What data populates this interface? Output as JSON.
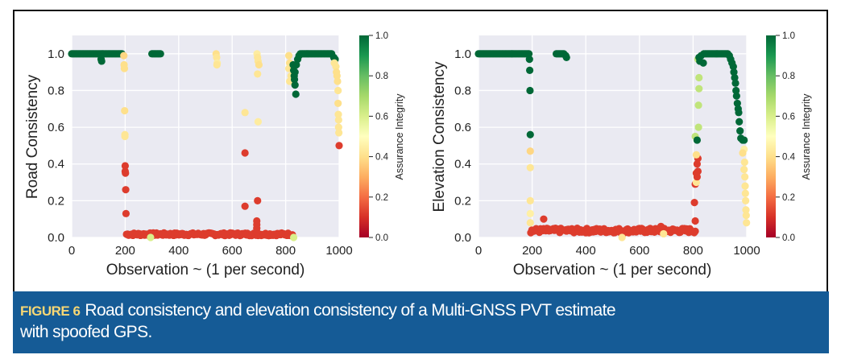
{
  "figure": {
    "label": "FIGURE 6",
    "caption_line1": "Road consistency and elevation consistency of a Multi-GNSS PVT estimate",
    "caption_line2": "with spoofed GPS."
  },
  "colors": {
    "caption_bg": "#155b96",
    "figure_label": "#f7d774",
    "plot_bg": "#eaeaf2",
    "grid": "#ffffff",
    "colormap": [
      "#a50026",
      "#d73027",
      "#f46d43",
      "#fdae61",
      "#fee08b",
      "#ffffbf",
      "#d9ef8b",
      "#a6d96a",
      "#66bd63",
      "#1a9850",
      "#006837"
    ]
  },
  "chart_data": [
    {
      "type": "scatter",
      "id": "road",
      "title": "",
      "xlabel": "Observation ~ (1 per second)",
      "ylabel": "Road Consistency",
      "xlim": [
        0,
        1000
      ],
      "ylim": [
        0,
        1.1
      ],
      "xticks": [
        0,
        200,
        400,
        600,
        800,
        1000
      ],
      "xtick_labels": [
        "0",
        "200",
        "400",
        "600",
        "800",
        "1000"
      ],
      "yticks": [
        0,
        0.2,
        0.4,
        0.6,
        0.8,
        1.0
      ],
      "ytick_labels": [
        "0.0",
        "0.2",
        "0.4",
        "0.6",
        "0.8",
        "1.0"
      ],
      "grid": true,
      "colorbar": {
        "label": "Assurance Integrity",
        "range": [
          0,
          1
        ],
        "ticks": [
          0,
          0.2,
          0.4,
          0.6,
          0.8,
          1.0
        ],
        "tick_labels": [
          "0.0",
          "0.2",
          "0.4",
          "0.6",
          "0.8",
          "1.0"
        ],
        "colormap": "RdYlGn"
      },
      "segments": [
        {
          "x_range": [
            0,
            190
          ],
          "y": 1.0,
          "c": 1.0,
          "step": 4
        },
        {
          "x_range": [
            300,
            335
          ],
          "y": 1.0,
          "c": 1.0,
          "step": 4
        },
        {
          "x_range": [
            205,
            295
          ],
          "y": 0.01,
          "c": 0.12,
          "step": 4,
          "jitter": 0.015
        },
        {
          "x_range": [
            305,
            825
          ],
          "y": 0.01,
          "c": 0.12,
          "step": 4,
          "jitter": 0.015
        },
        {
          "x_range": [
            860,
            975
          ],
          "y": 1.0,
          "c": 1.0,
          "step": 4
        }
      ],
      "points": [
        {
          "x": 110,
          "y": 0.97,
          "c": 1.0
        },
        {
          "x": 112,
          "y": 0.96,
          "c": 1.0
        },
        {
          "x": 195,
          "y": 0.99,
          "c": 0.38
        },
        {
          "x": 196,
          "y": 0.94,
          "c": 0.4
        },
        {
          "x": 197,
          "y": 0.92,
          "c": 0.4
        },
        {
          "x": 198,
          "y": 0.69,
          "c": 0.4
        },
        {
          "x": 199,
          "y": 0.56,
          "c": 0.42
        },
        {
          "x": 199,
          "y": 0.55,
          "c": 0.42
        },
        {
          "x": 200,
          "y": 0.39,
          "c": 0.12
        },
        {
          "x": 200,
          "y": 0.36,
          "c": 0.12
        },
        {
          "x": 201,
          "y": 0.35,
          "c": 0.12
        },
        {
          "x": 202,
          "y": 0.26,
          "c": 0.12
        },
        {
          "x": 203,
          "y": 0.13,
          "c": 0.12
        },
        {
          "x": 295,
          "y": 0.0,
          "c": 0.6
        },
        {
          "x": 540,
          "y": 1.0,
          "c": 0.4
        },
        {
          "x": 542,
          "y": 0.98,
          "c": 0.42
        },
        {
          "x": 544,
          "y": 0.95,
          "c": 0.44
        },
        {
          "x": 543,
          "y": 0.94,
          "c": 0.42
        },
        {
          "x": 648,
          "y": 0.68,
          "c": 0.42
        },
        {
          "x": 648,
          "y": 0.46,
          "c": 0.12
        },
        {
          "x": 648,
          "y": 0.17,
          "c": 0.12
        },
        {
          "x": 693,
          "y": 1.0,
          "c": 0.44
        },
        {
          "x": 695,
          "y": 0.98,
          "c": 0.42
        },
        {
          "x": 697,
          "y": 0.96,
          "c": 0.42
        },
        {
          "x": 700,
          "y": 0.94,
          "c": 0.4
        },
        {
          "x": 695,
          "y": 0.89,
          "c": 0.42
        },
        {
          "x": 697,
          "y": 0.63,
          "c": 0.44
        },
        {
          "x": 695,
          "y": 0.2,
          "c": 0.12
        },
        {
          "x": 692,
          "y": 0.09,
          "c": 0.12
        },
        {
          "x": 692,
          "y": 0.07,
          "c": 0.12
        },
        {
          "x": 692,
          "y": 0.05,
          "c": 0.12
        },
        {
          "x": 692,
          "y": 0.03,
          "c": 0.12
        },
        {
          "x": 812,
          "y": 0.99,
          "c": 0.4
        },
        {
          "x": 815,
          "y": 0.95,
          "c": 0.4
        },
        {
          "x": 812,
          "y": 0.92,
          "c": 0.42
        },
        {
          "x": 815,
          "y": 0.85,
          "c": 0.42
        },
        {
          "x": 825,
          "y": 0.92,
          "c": 0.4
        },
        {
          "x": 820,
          "y": 0.88,
          "c": 0.42
        },
        {
          "x": 830,
          "y": 0.0,
          "c": 0.6
        },
        {
          "x": 828,
          "y": 0.94,
          "c": 1.0
        },
        {
          "x": 830,
          "y": 0.91,
          "c": 1.0
        },
        {
          "x": 832,
          "y": 0.88,
          "c": 1.0
        },
        {
          "x": 833,
          "y": 0.86,
          "c": 1.0
        },
        {
          "x": 835,
          "y": 0.83,
          "c": 1.0
        },
        {
          "x": 838,
          "y": 0.78,
          "c": 1.0
        },
        {
          "x": 835,
          "y": 0.9,
          "c": 1.0
        },
        {
          "x": 840,
          "y": 0.94,
          "c": 1.0
        },
        {
          "x": 845,
          "y": 0.97,
          "c": 1.0
        },
        {
          "x": 850,
          "y": 0.99,
          "c": 1.0
        },
        {
          "x": 855,
          "y": 1.0,
          "c": 1.0
        },
        {
          "x": 980,
          "y": 0.98,
          "c": 1.0
        },
        {
          "x": 985,
          "y": 0.97,
          "c": 1.0
        },
        {
          "x": 982,
          "y": 0.95,
          "c": 0.42
        },
        {
          "x": 988,
          "y": 0.93,
          "c": 0.42
        },
        {
          "x": 990,
          "y": 0.9,
          "c": 0.4
        },
        {
          "x": 992,
          "y": 0.88,
          "c": 0.4
        },
        {
          "x": 994,
          "y": 0.85,
          "c": 0.4
        },
        {
          "x": 996,
          "y": 0.8,
          "c": 0.42
        },
        {
          "x": 996,
          "y": 0.73,
          "c": 0.4
        },
        {
          "x": 997,
          "y": 0.67,
          "c": 0.42
        },
        {
          "x": 998,
          "y": 0.64,
          "c": 0.42
        },
        {
          "x": 998,
          "y": 0.6,
          "c": 0.42
        },
        {
          "x": 999,
          "y": 0.57,
          "c": 0.42
        },
        {
          "x": 1000,
          "y": 0.5,
          "c": 0.12
        }
      ]
    },
    {
      "type": "scatter",
      "id": "elevation",
      "title": "",
      "xlabel": "Observation ~ (1 per second)",
      "ylabel": "Elevation Consistency",
      "xlim": [
        0,
        1000
      ],
      "ylim": [
        0,
        1.1
      ],
      "xticks": [
        0,
        200,
        400,
        600,
        800,
        1000
      ],
      "xtick_labels": [
        "0",
        "200",
        "400",
        "600",
        "800",
        "1000"
      ],
      "yticks": [
        0,
        0.2,
        0.4,
        0.6,
        0.8,
        1.0
      ],
      "ytick_labels": [
        "0.0",
        "0.2",
        "0.4",
        "0.6",
        "0.8",
        "1.0"
      ],
      "grid": true,
      "colorbar": {
        "label": "Assurance Integrity",
        "range": [
          0,
          1
        ],
        "ticks": [
          0,
          0.2,
          0.4,
          0.6,
          0.8,
          1.0
        ],
        "tick_labels": [
          "0.0",
          "0.2",
          "0.4",
          "0.6",
          "0.8",
          "1.0"
        ],
        "colormap": "RdYlGn"
      },
      "segments": [
        {
          "x_range": [
            0,
            188
          ],
          "y": 1.0,
          "c": 1.0,
          "step": 4
        },
        {
          "x_range": [
            290,
            320
          ],
          "y": 1.0,
          "c": 1.0,
          "step": 4
        },
        {
          "x_range": [
            195,
            310
          ],
          "y": 0.025,
          "c": 0.12,
          "step": 4,
          "jitter": 0.025
        },
        {
          "x_range": [
            320,
            810
          ],
          "y": 0.025,
          "c": 0.12,
          "step": 4,
          "jitter": 0.025
        },
        {
          "x_range": [
            845,
            930
          ],
          "y": 1.0,
          "c": 1.0,
          "step": 4
        }
      ],
      "points": [
        {
          "x": 325,
          "y": 0.99,
          "c": 1.0
        },
        {
          "x": 328,
          "y": 0.98,
          "c": 1.0
        },
        {
          "x": 190,
          "y": 0.97,
          "c": 1.0
        },
        {
          "x": 191,
          "y": 0.91,
          "c": 1.0
        },
        {
          "x": 192,
          "y": 0.8,
          "c": 1.0
        },
        {
          "x": 193,
          "y": 0.56,
          "c": 1.0
        },
        {
          "x": 193,
          "y": 0.47,
          "c": 0.38
        },
        {
          "x": 193,
          "y": 0.38,
          "c": 0.42
        },
        {
          "x": 193,
          "y": 0.2,
          "c": 0.42
        },
        {
          "x": 193,
          "y": 0.13,
          "c": 0.45
        },
        {
          "x": 193,
          "y": 0.08,
          "c": 0.42
        },
        {
          "x": 243,
          "y": 0.1,
          "c": 0.12
        },
        {
          "x": 535,
          "y": 0.0,
          "c": 0.42
        },
        {
          "x": 690,
          "y": 0.02,
          "c": 0.42
        },
        {
          "x": 680,
          "y": 0.06,
          "c": 0.12
        },
        {
          "x": 808,
          "y": 0.09,
          "c": 0.12
        },
        {
          "x": 805,
          "y": 0.19,
          "c": 0.12
        },
        {
          "x": 808,
          "y": 0.29,
          "c": 0.12
        },
        {
          "x": 812,
          "y": 0.3,
          "c": 0.42
        },
        {
          "x": 812,
          "y": 0.35,
          "c": 0.12
        },
        {
          "x": 815,
          "y": 0.33,
          "c": 0.12
        },
        {
          "x": 818,
          "y": 0.36,
          "c": 0.12
        },
        {
          "x": 815,
          "y": 0.4,
          "c": 0.12
        },
        {
          "x": 818,
          "y": 0.43,
          "c": 0.12
        },
        {
          "x": 812,
          "y": 0.45,
          "c": 0.4
        },
        {
          "x": 808,
          "y": 0.55,
          "c": 0.65
        },
        {
          "x": 815,
          "y": 0.53,
          "c": 1.0
        },
        {
          "x": 820,
          "y": 0.6,
          "c": 0.65
        },
        {
          "x": 820,
          "y": 0.72,
          "c": 0.65
        },
        {
          "x": 822,
          "y": 0.81,
          "c": 0.65
        },
        {
          "x": 822,
          "y": 0.87,
          "c": 0.65
        },
        {
          "x": 818,
          "y": 0.97,
          "c": 0.65
        },
        {
          "x": 822,
          "y": 0.98,
          "c": 1.0
        },
        {
          "x": 825,
          "y": 0.96,
          "c": 1.0
        },
        {
          "x": 830,
          "y": 0.99,
          "c": 1.0
        },
        {
          "x": 838,
          "y": 0.95,
          "c": 1.0
        },
        {
          "x": 840,
          "y": 1.0,
          "c": 1.0
        },
        {
          "x": 935,
          "y": 0.99,
          "c": 1.0
        },
        {
          "x": 940,
          "y": 0.97,
          "c": 1.0
        },
        {
          "x": 945,
          "y": 0.95,
          "c": 1.0
        },
        {
          "x": 950,
          "y": 0.93,
          "c": 1.0
        },
        {
          "x": 952,
          "y": 0.9,
          "c": 1.0
        },
        {
          "x": 955,
          "y": 0.87,
          "c": 1.0
        },
        {
          "x": 958,
          "y": 0.84,
          "c": 1.0
        },
        {
          "x": 960,
          "y": 0.8,
          "c": 1.0
        },
        {
          "x": 962,
          "y": 0.77,
          "c": 1.0
        },
        {
          "x": 965,
          "y": 0.73,
          "c": 1.0
        },
        {
          "x": 968,
          "y": 0.7,
          "c": 1.0
        },
        {
          "x": 970,
          "y": 0.68,
          "c": 1.0
        },
        {
          "x": 972,
          "y": 0.63,
          "c": 1.0
        },
        {
          "x": 975,
          "y": 0.58,
          "c": 1.0
        },
        {
          "x": 978,
          "y": 0.54,
          "c": 1.0
        },
        {
          "x": 985,
          "y": 0.53,
          "c": 1.0
        },
        {
          "x": 990,
          "y": 0.53,
          "c": 1.0
        },
        {
          "x": 990,
          "y": 0.48,
          "c": 0.45
        },
        {
          "x": 985,
          "y": 0.46,
          "c": 0.4
        },
        {
          "x": 992,
          "y": 0.41,
          "c": 0.42
        },
        {
          "x": 990,
          "y": 0.37,
          "c": 0.42
        },
        {
          "x": 993,
          "y": 0.33,
          "c": 0.42
        },
        {
          "x": 994,
          "y": 0.28,
          "c": 0.42
        },
        {
          "x": 995,
          "y": 0.24,
          "c": 0.42
        },
        {
          "x": 996,
          "y": 0.2,
          "c": 0.42
        },
        {
          "x": 997,
          "y": 0.15,
          "c": 0.42
        },
        {
          "x": 998,
          "y": 0.12,
          "c": 0.42
        },
        {
          "x": 999,
          "y": 0.08,
          "c": 0.42
        }
      ]
    }
  ]
}
